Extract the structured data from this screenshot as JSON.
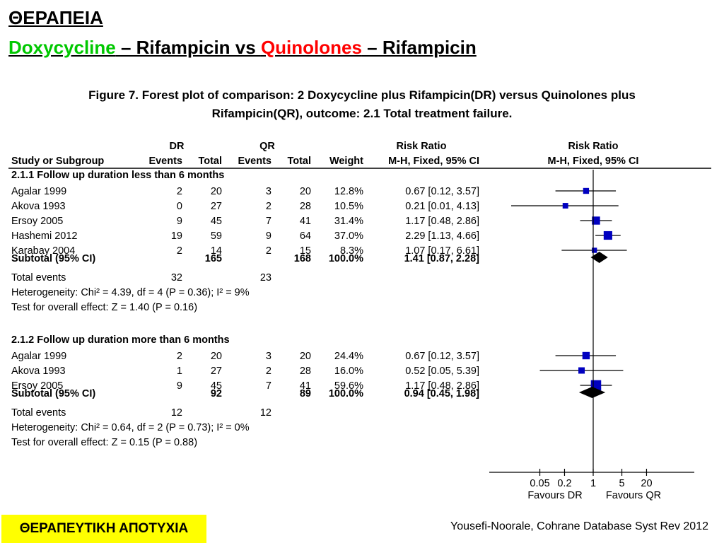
{
  "slide": {
    "title": "ΘΕΡΑΠΕΙΑ",
    "subtitle_parts": [
      {
        "text": "Doxycycline",
        "color": "green"
      },
      {
        "text": " – Rifampicin vs ",
        "color": "black"
      },
      {
        "text": "Quinolones",
        "color": "red"
      },
      {
        "text": " – Rifampicin",
        "color": "black"
      }
    ],
    "tag": "ΘΕΡΑΠΕΥΤΙΚΗ ΑΠΟΤΥΧΙΑ",
    "citation": "Yousefi-Noorale, Cohrane Database Syst Rev 2012"
  },
  "colors": {
    "green": "#00c800",
    "red": "#ff0000",
    "marker": "#0000c0",
    "tag_bg": "#ffff00"
  },
  "chart_data": {
    "type": "forest",
    "caption_line1": "Figure 7.   Forest plot of comparison: 2 Doxycycline plus Rifampicin(DR) versus Quinolones plus",
    "caption_line2": "Rifampicin(QR), outcome: 2.1  Total treatment failure.",
    "group_headers": {
      "dr": "DR",
      "qr": "QR",
      "rr_text": "Risk Ratio",
      "rr_plot": "Risk Ratio"
    },
    "columns": {
      "study": "Study or Subgroup",
      "dr_events": "Events",
      "dr_total": "Total",
      "qr_events": "Events",
      "qr_total": "Total",
      "weight": "Weight",
      "rr_text": "M-H, Fixed, 95% CI",
      "rr_plot": "M-H, Fixed, 95% CI"
    },
    "scale": "log",
    "axis": {
      "ticks": [
        0.05,
        0.2,
        1,
        5,
        20
      ],
      "tick_labels": [
        "0.05",
        "0.2",
        "1",
        "5",
        "20"
      ],
      "min": 0.02,
      "max": 40,
      "favours_left": "Favours DR",
      "favours_right": "Favours QR"
    },
    "subgroups": [
      {
        "header": "2.1.1 Follow up duration less than 6 months",
        "studies": [
          {
            "name": "Agalar 1999",
            "dr_events": "2",
            "dr_total": "20",
            "qr_events": "3",
            "qr_total": "20",
            "weight": "12.8%",
            "ci_text": "0.67 [0.12, 3.57]",
            "rr": 0.67,
            "lo": 0.12,
            "hi": 3.57,
            "w": 12.8
          },
          {
            "name": "Akova 1993",
            "dr_events": "0",
            "dr_total": "27",
            "qr_events": "2",
            "qr_total": "28",
            "weight": "10.5%",
            "ci_text": "0.21 [0.01, 4.13]",
            "rr": 0.21,
            "lo": 0.01,
            "hi": 4.13,
            "w": 10.5
          },
          {
            "name": "Ersoy 2005",
            "dr_events": "9",
            "dr_total": "45",
            "qr_events": "7",
            "qr_total": "41",
            "weight": "31.4%",
            "ci_text": "1.17 [0.48, 2.86]",
            "rr": 1.17,
            "lo": 0.48,
            "hi": 2.86,
            "w": 31.4
          },
          {
            "name": "Hashemi 2012",
            "dr_events": "19",
            "dr_total": "59",
            "qr_events": "9",
            "qr_total": "64",
            "weight": "37.0%",
            "ci_text": "2.29 [1.13, 4.66]",
            "rr": 2.29,
            "lo": 1.13,
            "hi": 4.66,
            "w": 37.0
          },
          {
            "name": "Karabay 2004",
            "dr_events": "2",
            "dr_total": "14",
            "qr_events": "2",
            "qr_total": "15",
            "weight": "8.3%",
            "ci_text": "1.07 [0.17, 6.61]",
            "rr": 1.07,
            "lo": 0.17,
            "hi": 6.61,
            "w": 8.3
          }
        ],
        "subtotal": {
          "label": "Subtotal (95% CI)",
          "dr_total": "165",
          "qr_total": "168",
          "weight": "100.0%",
          "ci_text": "1.41 [0.87, 2.28]",
          "rr": 1.41,
          "lo": 0.87,
          "hi": 2.28
        },
        "total_events": {
          "label": "Total events",
          "dr": "32",
          "qr": "23"
        },
        "heterogeneity": "Heterogeneity: Chi² = 4.39, df = 4 (P = 0.36); I² = 9%",
        "overall_effect": "Test for overall effect: Z = 1.40 (P = 0.16)"
      },
      {
        "header": "2.1.2 Follow up duration more than 6 months",
        "studies": [
          {
            "name": "Agalar 1999",
            "dr_events": "2",
            "dr_total": "20",
            "qr_events": "3",
            "qr_total": "20",
            "weight": "24.4%",
            "ci_text": "0.67 [0.12, 3.57]",
            "rr": 0.67,
            "lo": 0.12,
            "hi": 3.57,
            "w": 24.4
          },
          {
            "name": "Akova 1993",
            "dr_events": "1",
            "dr_total": "27",
            "qr_events": "2",
            "qr_total": "28",
            "weight": "16.0%",
            "ci_text": "0.52 [0.05, 5.39]",
            "rr": 0.52,
            "lo": 0.05,
            "hi": 5.39,
            "w": 16.0
          },
          {
            "name": "Ersoy 2005",
            "dr_events": "9",
            "dr_total": "45",
            "qr_events": "7",
            "qr_total": "41",
            "weight": "59.6%",
            "ci_text": "1.17 [0.48, 2.86]",
            "rr": 1.17,
            "lo": 0.48,
            "hi": 2.86,
            "w": 59.6
          }
        ],
        "subtotal": {
          "label": "Subtotal (95% CI)",
          "dr_total": "92",
          "qr_total": "89",
          "weight": "100.0%",
          "ci_text": "0.94 [0.45, 1.98]",
          "rr": 0.94,
          "lo": 0.45,
          "hi": 1.98
        },
        "total_events": {
          "label": "Total events",
          "dr": "12",
          "qr": "12"
        },
        "heterogeneity": "Heterogeneity: Chi² = 0.64, df = 2 (P = 0.73); I² = 0%",
        "overall_effect": "Test for overall effect: Z = 0.15 (P = 0.88)"
      }
    ]
  }
}
